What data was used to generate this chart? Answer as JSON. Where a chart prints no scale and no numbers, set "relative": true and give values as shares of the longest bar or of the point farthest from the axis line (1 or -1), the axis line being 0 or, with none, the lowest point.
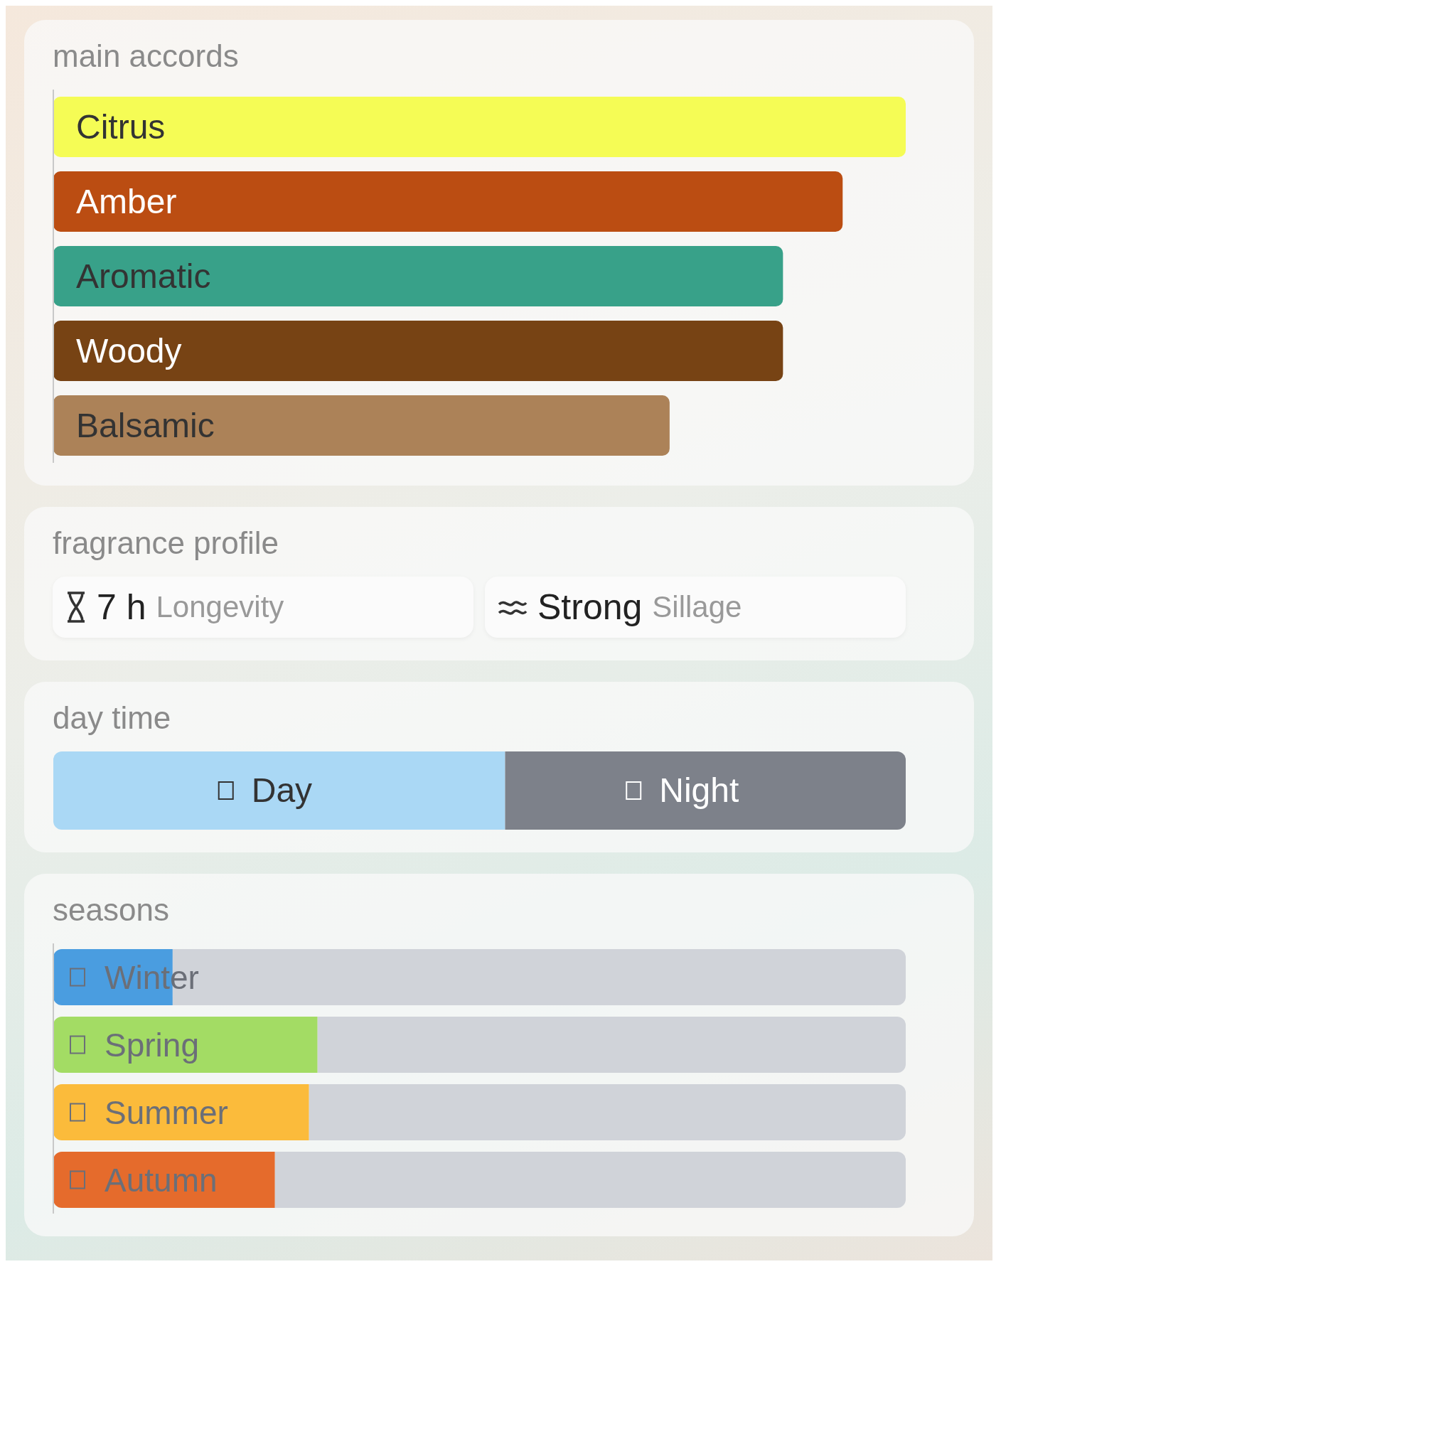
{
  "chart_data": [
    {
      "type": "bar",
      "title": "main accords",
      "orientation": "horizontal",
      "relative": true,
      "categories": [
        "Citrus",
        "Amber",
        "Aromatic",
        "Woody",
        "Balsamic"
      ],
      "values": [
        1,
        0.926,
        0.856,
        0.856,
        0.723
      ],
      "colors": [
        "#f5fc55",
        "#bb4d12",
        "#38a189",
        "#774314",
        "#ac8258"
      ]
    },
    {
      "type": "other",
      "title": "fragrance profile",
      "categories": [
        "Longevity",
        "Sillage"
      ],
      "value_labels": [
        "7 h",
        "Strong"
      ]
    },
    {
      "type": "bar",
      "title": "day time",
      "orientation": "horizontal",
      "stacked": true,
      "relative": true,
      "categories": [
        null
      ],
      "series": [
        {
          "name": "Day",
          "color": "#aad8f5",
          "values": [
            0.53
          ]
        },
        {
          "name": "Night",
          "color": "#7d818a",
          "values": [
            0.47
          ]
        }
      ]
    },
    {
      "type": "bar",
      "title": "seasons",
      "orientation": "horizontal",
      "stacked": true,
      "relative": true,
      "categories": [
        "Winter",
        "Spring",
        "Summer",
        "Autumn"
      ],
      "series": [
        {
          "colors": [
            "#4a9de0",
            "#a3dc64",
            "#fbbb3b",
            "#e56b2c"
          ],
          "values": [
            0.14,
            0.31,
            0.3,
            0.26
          ]
        },
        {
          "color": "#d0d3d9",
          "values": [
            0.86,
            0.69,
            0.7,
            0.74
          ]
        }
      ]
    }
  ]
}
